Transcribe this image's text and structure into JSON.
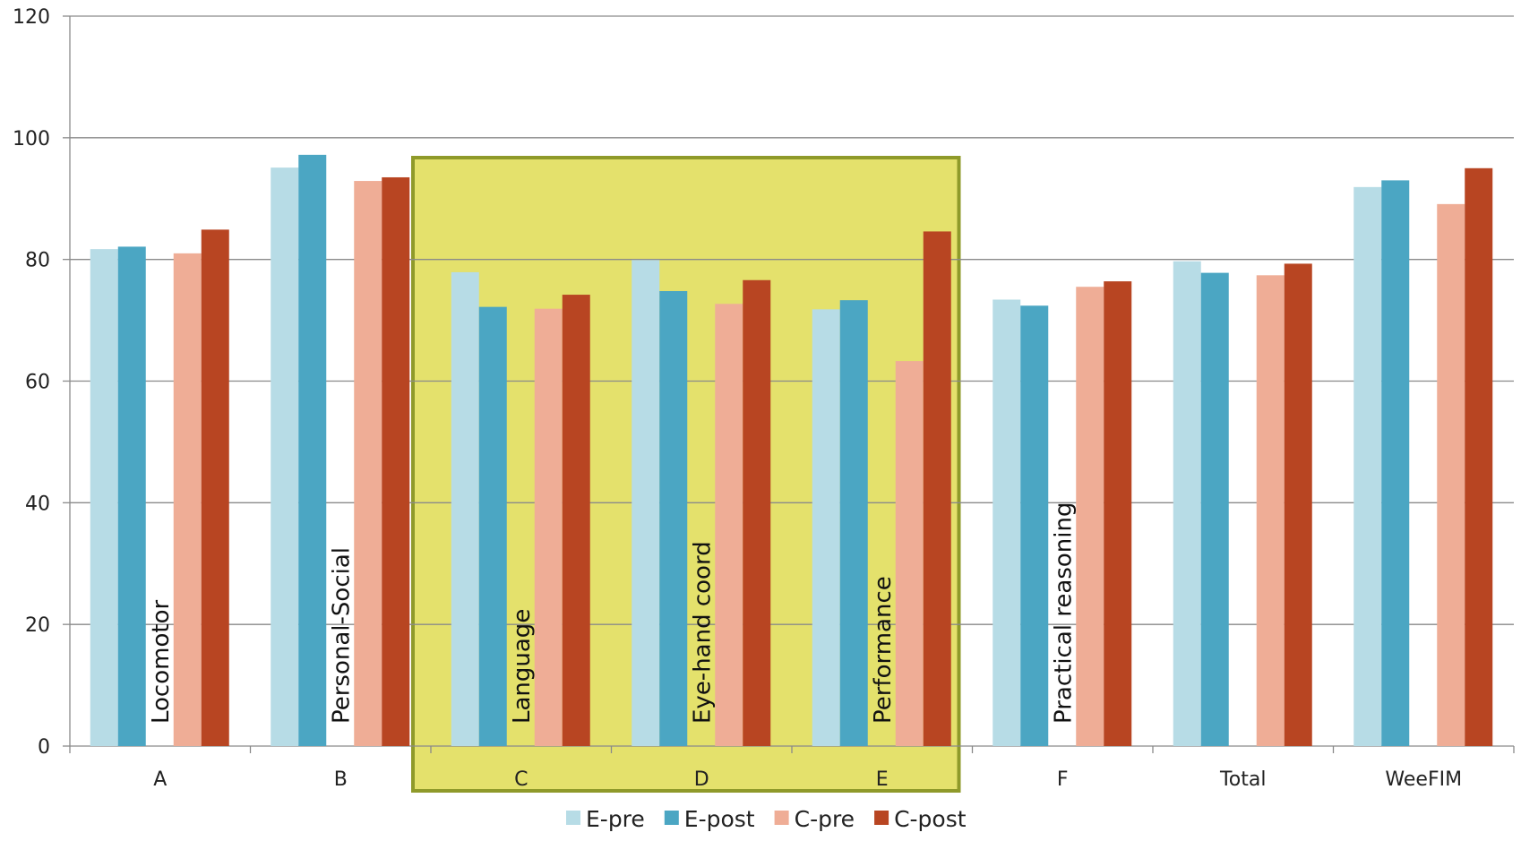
{
  "chart_data": {
    "type": "bar",
    "title": "",
    "xlabel": "",
    "ylabel": "",
    "ylim": [
      0,
      120
    ],
    "yticks": [
      0,
      20,
      40,
      60,
      80,
      100,
      120
    ],
    "grid": "horizontal",
    "legend": "bottom-center",
    "categories": [
      "A",
      "B",
      "C",
      "D",
      "E",
      "F",
      "Total",
      "WeeFIM"
    ],
    "in_plot_labels": [
      {
        "category": "A",
        "text": "Locomotor"
      },
      {
        "category": "B",
        "text": "Personal-Social"
      },
      {
        "category": "C",
        "text": "Language"
      },
      {
        "category": "D",
        "text": "Eye-hand coord"
      },
      {
        "category": "E",
        "text": "Performance"
      },
      {
        "category": "F",
        "text": "Practical reasoning"
      }
    ],
    "highlight": {
      "from": "C",
      "to": "E",
      "fill": "#e4e16c",
      "stroke": "#8f9a2a"
    },
    "series": [
      {
        "name": "E-pre",
        "color": "#b7dce6",
        "values": [
          81.7,
          95.1,
          77.9,
          79.9,
          71.8,
          73.4,
          79.7,
          91.9
        ]
      },
      {
        "name": "E-post",
        "color": "#4ba6c3",
        "values": [
          82.1,
          97.2,
          72.2,
          74.8,
          73.3,
          72.4,
          77.8,
          93.0
        ]
      },
      {
        "name": "C-pre",
        "color": "#efad96",
        "values": [
          81.0,
          92.9,
          71.9,
          72.7,
          63.3,
          75.5,
          77.4,
          89.1
        ]
      },
      {
        "name": "C-post",
        "color": "#b84522",
        "values": [
          84.9,
          93.5,
          74.2,
          76.6,
          84.6,
          76.4,
          79.3,
          95.0
        ]
      }
    ]
  }
}
